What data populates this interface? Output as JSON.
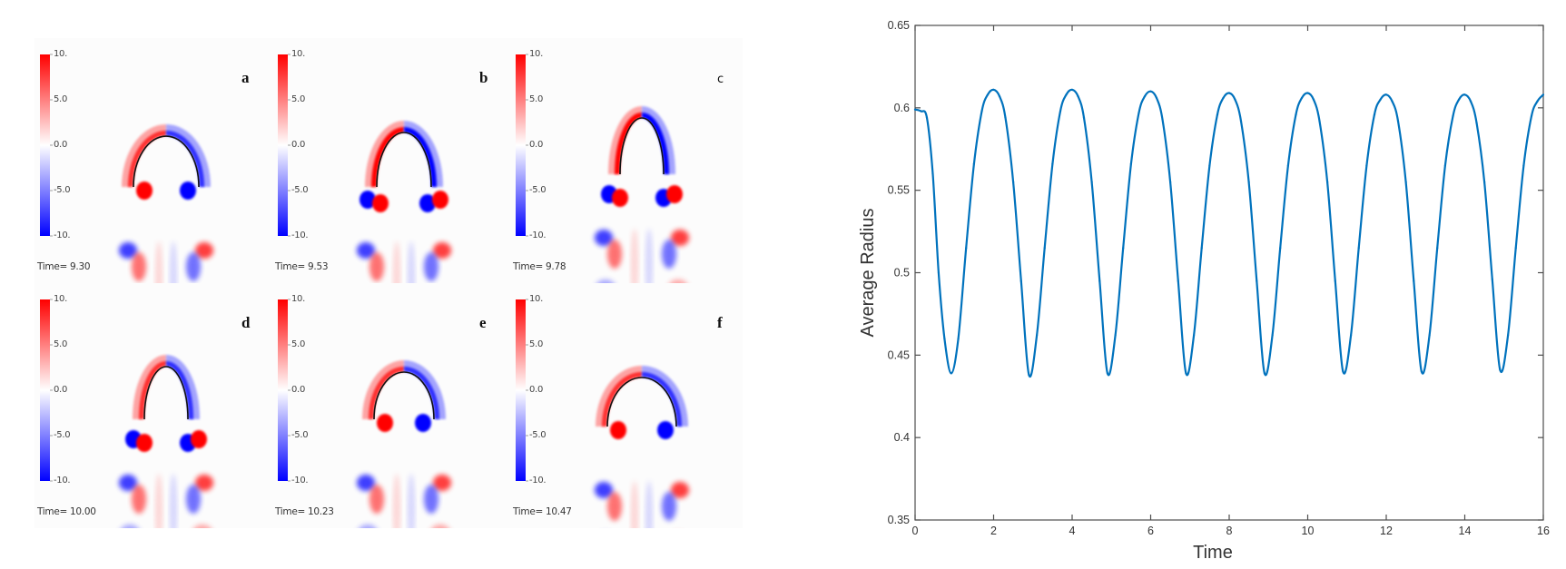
{
  "panels": {
    "colorbar": {
      "labels": [
        "10.",
        "5.0",
        "0.0",
        "-5.0",
        "-10."
      ],
      "max_color": "#ff0000",
      "mid_color": "#ffffff",
      "min_color": "#0000ff"
    },
    "items": [
      {
        "letter": "a",
        "time": "Time= 9.30"
      },
      {
        "letter": "b",
        "time": "Time= 9.53"
      },
      {
        "letter": "c",
        "time": "Time= 9.78"
      },
      {
        "letter": "d",
        "time": "Time= 10.00"
      },
      {
        "letter": "e",
        "time": "Time= 10.23"
      },
      {
        "letter": "f",
        "time": "Time= 10.47"
      }
    ]
  },
  "chart_data": {
    "type": "line",
    "title": "",
    "xlabel": "Time",
    "ylabel": "Average Radius",
    "xlim": [
      0,
      16
    ],
    "ylim": [
      0.35,
      0.65
    ],
    "xticks": [
      0,
      2,
      4,
      6,
      8,
      10,
      12,
      14,
      16
    ],
    "xtick_labels": [
      "0",
      "2",
      "4",
      "6",
      "8",
      "10",
      "12",
      "14",
      "16"
    ],
    "yticks": [
      0.35,
      0.4,
      0.45,
      0.5,
      0.55,
      0.6,
      0.65
    ],
    "ytick_labels": [
      "0.35",
      "0.4",
      "0.45",
      "0.5",
      "0.55",
      "0.6",
      "0.65"
    ],
    "grid": false,
    "line_color": "#0072bd",
    "series": [
      {
        "name": "Average Radius",
        "x": [
          0,
          0.15,
          0.3,
          0.45,
          0.6,
          0.75,
          0.92,
          1.1,
          1.3,
          1.5,
          1.7,
          1.85,
          2.0,
          2.15,
          2.3,
          2.5,
          2.7,
          2.9,
          3.1,
          3.3,
          3.5,
          3.7,
          3.85,
          4.0,
          4.15,
          4.3,
          4.5,
          4.7,
          4.9,
          5.1,
          5.3,
          5.5,
          5.7,
          5.85,
          6.0,
          6.15,
          6.3,
          6.5,
          6.7,
          6.9,
          7.1,
          7.3,
          7.5,
          7.7,
          7.85,
          8.0,
          8.15,
          8.3,
          8.5,
          8.7,
          8.9,
          9.1,
          9.3,
          9.5,
          9.7,
          9.85,
          10.0,
          10.15,
          10.3,
          10.5,
          10.7,
          10.9,
          11.1,
          11.3,
          11.5,
          11.7,
          11.85,
          12.0,
          12.15,
          12.3,
          12.5,
          12.7,
          12.9,
          13.1,
          13.3,
          13.5,
          13.7,
          13.85,
          14.0,
          14.15,
          14.3,
          14.5,
          14.7,
          14.9,
          15.1,
          15.3,
          15.5,
          15.7,
          15.85,
          16.0
        ],
        "y": [
          0.599,
          0.598,
          0.594,
          0.56,
          0.5,
          0.46,
          0.439,
          0.46,
          0.515,
          0.566,
          0.598,
          0.608,
          0.611,
          0.607,
          0.594,
          0.555,
          0.495,
          0.438,
          0.462,
          0.515,
          0.566,
          0.598,
          0.608,
          0.611,
          0.607,
          0.594,
          0.555,
          0.495,
          0.439,
          0.462,
          0.515,
          0.566,
          0.597,
          0.607,
          0.61,
          0.606,
          0.593,
          0.555,
          0.495,
          0.439,
          0.462,
          0.515,
          0.565,
          0.596,
          0.606,
          0.609,
          0.605,
          0.592,
          0.555,
          0.495,
          0.439,
          0.462,
          0.515,
          0.565,
          0.596,
          0.606,
          0.609,
          0.605,
          0.592,
          0.555,
          0.495,
          0.44,
          0.462,
          0.515,
          0.565,
          0.596,
          0.605,
          0.608,
          0.604,
          0.592,
          0.555,
          0.495,
          0.44,
          0.462,
          0.515,
          0.565,
          0.595,
          0.605,
          0.608,
          0.604,
          0.591,
          0.555,
          0.496,
          0.441,
          0.462,
          0.515,
          0.565,
          0.595,
          0.604,
          0.608
        ]
      }
    ]
  }
}
